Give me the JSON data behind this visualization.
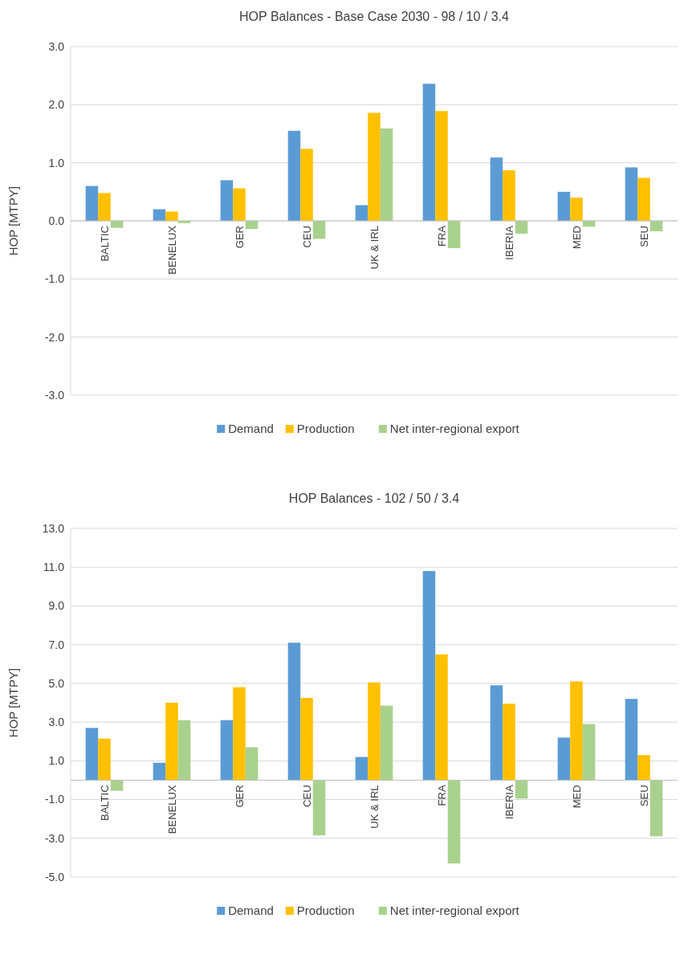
{
  "chart_data": [
    {
      "type": "bar",
      "title": "HOP Balances - Base Case 2030 - 98 / 10 / 3.4",
      "ylabel": "HOP [MTPY]",
      "categories": [
        "BALTIC",
        "BENELUX",
        "GER",
        "CEU",
        "UK & IRL",
        "FRA",
        "IBERIA",
        "MED",
        "SEU"
      ],
      "series": [
        {
          "name": "Demand",
          "color": "#5b9bd5",
          "values": [
            0.6,
            0.2,
            0.7,
            1.55,
            0.27,
            2.36,
            1.09,
            0.5,
            0.92
          ]
        },
        {
          "name": "Production",
          "color": "#ffc000",
          "values": [
            0.48,
            0.16,
            0.56,
            1.24,
            1.86,
            1.89,
            0.87,
            0.4,
            0.74
          ]
        },
        {
          "name": "Net inter-regional export",
          "color": "#a9d18e",
          "values": [
            -0.12,
            -0.04,
            -0.14,
            -0.31,
            1.59,
            -0.47,
            -0.22,
            -0.1,
            -0.18
          ]
        }
      ],
      "ylim": [
        -3,
        3
      ],
      "yticks": [
        {
          "value": -3,
          "label": "-3.0"
        },
        {
          "value": -2,
          "label": "-2.0"
        },
        {
          "value": -1,
          "label": "-1.0"
        },
        {
          "value": 0,
          "label": "0.0"
        },
        {
          "value": 1,
          "label": "1.0"
        },
        {
          "value": 2,
          "label": "2.0"
        },
        {
          "value": 3,
          "label": "3.0"
        }
      ],
      "grid": "y",
      "legend": "bottom"
    },
    {
      "type": "bar",
      "title": "HOP Balances - 102 / 50 / 3.4",
      "ylabel": "HOP [MTPY]",
      "categories": [
        "BALTIC",
        "BENELUX",
        "GER",
        "CEU",
        "UK & IRL",
        "FRA",
        "IBERIA",
        "MED",
        "SEU"
      ],
      "series": [
        {
          "name": "Demand",
          "color": "#5b9bd5",
          "values": [
            2.7,
            0.9,
            3.1,
            7.1,
            1.2,
            10.8,
            4.9,
            2.2,
            4.2
          ]
        },
        {
          "name": "Production",
          "color": "#ffc000",
          "values": [
            2.15,
            4.0,
            4.8,
            4.25,
            5.05,
            6.5,
            3.95,
            5.1,
            1.3
          ]
        },
        {
          "name": "Net inter-regional export",
          "color": "#a9d18e",
          "values": [
            -0.55,
            3.1,
            1.7,
            -2.85,
            3.85,
            -4.3,
            -0.95,
            2.9,
            -2.9
          ]
        }
      ],
      "ylim": [
        -5,
        13
      ],
      "yticks": [
        {
          "value": -5,
          "label": "-5.0"
        },
        {
          "value": -3,
          "label": "-3.0"
        },
        {
          "value": -1,
          "label": "-1.0"
        },
        {
          "value": 1,
          "label": "1.0"
        },
        {
          "value": 3,
          "label": "3.0"
        },
        {
          "value": 5,
          "label": "5.0"
        },
        {
          "value": 7,
          "label": "7.0"
        },
        {
          "value": 9,
          "label": "9.0"
        },
        {
          "value": 11,
          "label": "11.0"
        },
        {
          "value": 13,
          "label": "13.0"
        }
      ],
      "grid": "y",
      "legend": "bottom"
    }
  ]
}
